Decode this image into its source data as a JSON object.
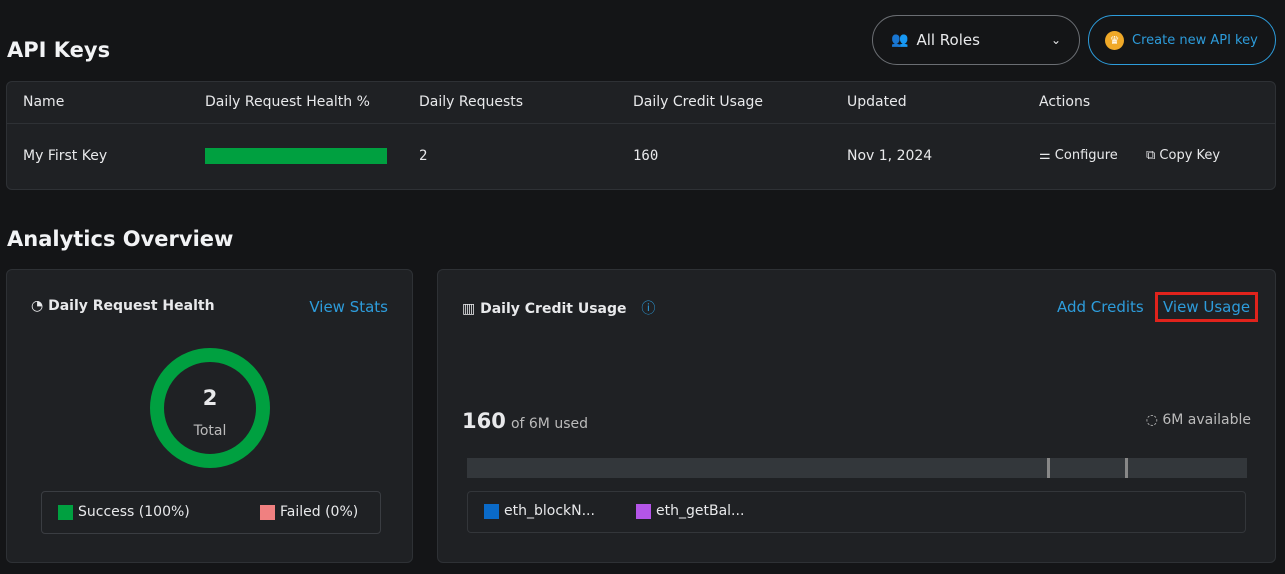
{
  "header": {
    "title": "API Keys",
    "role_filter": "All Roles",
    "create_label": "Create new API key"
  },
  "table": {
    "columns": [
      "Name",
      "Daily Request Health %",
      "Daily Requests",
      "Daily Credit Usage",
      "Updated",
      "Actions"
    ],
    "rows": [
      {
        "name": "My First Key",
        "health_percent": 100,
        "requests": "2",
        "credits": "160",
        "updated": "Nov 1, 2024",
        "configure": "Configure",
        "copy": "Copy Key"
      }
    ]
  },
  "analytics": {
    "title": "Analytics Overview",
    "health": {
      "title": "Daily Request Health",
      "link": "View Stats",
      "total": "2",
      "total_label": "Total",
      "success": "Success (100%)",
      "failed": "Failed (0%)",
      "success_color": "#00a040",
      "failed_color": "#f08080"
    },
    "credit": {
      "title": "Daily Credit Usage",
      "add": "Add Credits",
      "view": "View Usage",
      "used": "160",
      "used_suffix": "of 6M used",
      "available": "6M available",
      "legend": [
        {
          "label": "eth_blockN...",
          "color": "#0a6ac8"
        },
        {
          "label": "eth_getBal...",
          "color": "#b455e8"
        }
      ]
    }
  }
}
